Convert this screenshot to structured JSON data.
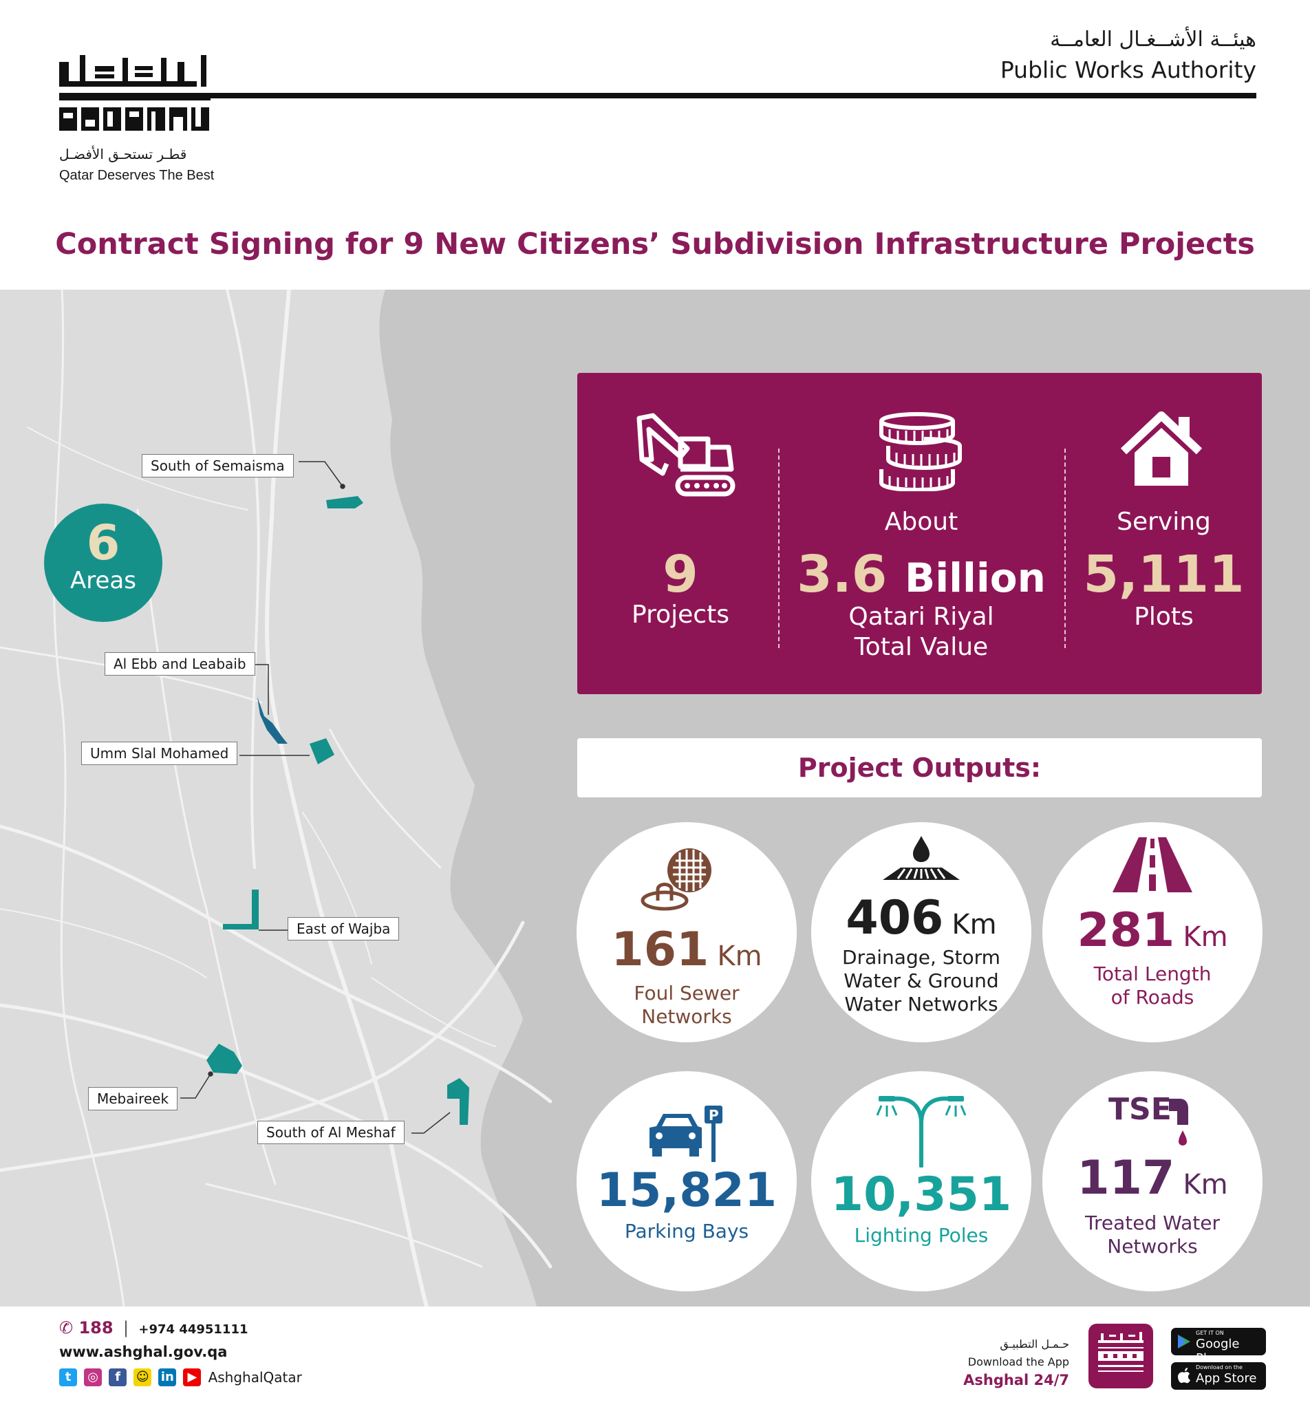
{
  "header": {
    "logo_ar": "أشغال",
    "logo_en": "ASHGHAL",
    "tagline_ar": "قطـر تستحـق الأفضـل",
    "tagline_en": "Qatar Deserves The Best",
    "authority_ar": "هيئــة الأشــغـال العامــة",
    "authority_en": "Public Works Authority"
  },
  "title": "Contract Signing for 9 New Citizens’ Subdivision Infrastructure Projects",
  "map": {
    "areas_count": "6",
    "areas_label": "Areas",
    "labels": [
      "South of Semaisma",
      "Al Ebb and Leabaib",
      "Umm Slal Mohamed",
      "East of Wajba",
      "Mebaireek",
      "South of Al Meshaf"
    ],
    "land_color": "#dcdcdc",
    "sea_color": "#c6c6c6",
    "area_color": "#13918a"
  },
  "stats": {
    "projects": {
      "prefix": "",
      "value": "9",
      "suffix": "Projects",
      "icon": "excavator-icon"
    },
    "value": {
      "prefix": "About",
      "value": "3.6",
      "unit": "Billion",
      "suffix1": "Qatari Riyal",
      "suffix2": "Total Value",
      "icon": "coins-icon"
    },
    "plots": {
      "prefix": "Serving",
      "value": "5,111",
      "suffix": "Plots",
      "icon": "house-icon"
    }
  },
  "outputs_title": "Project Outputs:",
  "outputs": [
    {
      "value": "161",
      "unit": "Km",
      "desc1": "Foul Sewer",
      "desc2": "Networks",
      "desc3": "",
      "color": "#7b4a36",
      "icon": "sewer-manhole-icon"
    },
    {
      "value": "406",
      "unit": "Km",
      "desc1": "Drainage, Storm",
      "desc2": "Water & Ground",
      "desc3": "Water Networks",
      "color": "#1e1e1e",
      "icon": "drainage-drop-icon"
    },
    {
      "value": "281",
      "unit": "Km",
      "desc1": "Total Length",
      "desc2": "of Roads",
      "desc3": "",
      "color": "#8a1c5a",
      "icon": "road-icon"
    },
    {
      "value": "15,821",
      "unit": "",
      "desc1": "Parking Bays",
      "desc2": "",
      "desc3": "",
      "color": "#1d5f95",
      "icon": "parking-car-icon"
    },
    {
      "value": "10,351",
      "unit": "",
      "desc1": "Lighting Poles",
      "desc2": "",
      "desc3": "",
      "color": "#17a39c",
      "icon": "street-light-icon"
    },
    {
      "value": "117",
      "unit": "Km",
      "desc1": "Treated Water",
      "desc2": "Networks",
      "desc3": "",
      "color": "#5a2a5e",
      "icon": "tse-tap-icon",
      "badge": "TSE"
    }
  ],
  "footer": {
    "hotline": "188",
    "phone": "+974 44951111",
    "website": "www.ashghal.gov.qa",
    "social_handle": "AshghalQatar",
    "download_ar": "حـمـل التطبيـق",
    "download_en": "Download the App",
    "app_name": "Ashghal 24/7",
    "google_small": "GET IT ON",
    "google_name": "Google Play",
    "apple_small": "Download on the",
    "apple_name": "App Store"
  }
}
